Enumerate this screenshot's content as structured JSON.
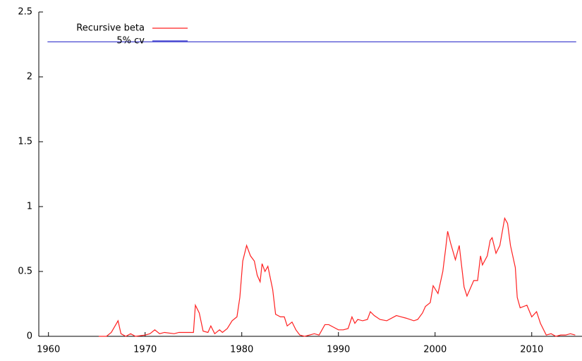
{
  "chart_data": {
    "type": "line",
    "xlim": [
      1959,
      2015.2
    ],
    "ylim": [
      0,
      2.5
    ],
    "xticks": [
      1960,
      1970,
      1980,
      1990,
      2000,
      2010
    ],
    "yticks": [
      0,
      0.5,
      1,
      1.5,
      2,
      2.5
    ],
    "legend": "top-left",
    "series": [
      {
        "name": "Recursive beta",
        "color": "#ff2020",
        "x": [
          1965.2,
          1966,
          1966.5,
          1967.2,
          1967.5,
          1968,
          1968.5,
          1969,
          1970,
          1970.5,
          1971,
          1971.5,
          1972,
          1973,
          1973.5,
          1974,
          1975,
          1975.2,
          1975.6,
          1976,
          1976.5,
          1976.8,
          1977.2,
          1977.7,
          1978,
          1978.5,
          1979,
          1979.5,
          1979.8,
          1980.1,
          1980.5,
          1980.9,
          1981.3,
          1981.6,
          1981.9,
          1982.1,
          1982.4,
          1982.7,
          1983.2,
          1983.5,
          1984,
          1984.4,
          1984.7,
          1985.2,
          1985.6,
          1986,
          1986.5,
          1987,
          1987.5,
          1988,
          1988.6,
          1989,
          1989.5,
          1990,
          1990.5,
          1991,
          1991.4,
          1991.7,
          1992,
          1992.5,
          1993,
          1993.3,
          1993.7,
          1994.3,
          1995,
          1996,
          1996.5,
          1997,
          1997.8,
          1998.2,
          1998.7,
          1999,
          1999.5,
          1999.8,
          2000.3,
          2000.8,
          2001.1,
          2001.3,
          2001.6,
          2002.1,
          2002.5,
          2003,
          2003.3,
          2004,
          2004.4,
          2004.7,
          2004.9,
          2005.4,
          2005.7,
          2005.9,
          2006.3,
          2006.7,
          2007.2,
          2007.5,
          2007.8,
          2008.3,
          2008.5,
          2008.8,
          2009.5,
          2010,
          2010.5,
          2010.9,
          2011.5,
          2012,
          2012.5,
          2013,
          2013.5,
          2014,
          2014.5
        ],
        "values": [
          0,
          0,
          0.03,
          0.12,
          0.02,
          0,
          0.02,
          0,
          0.01,
          0.02,
          0.05,
          0.02,
          0.03,
          0.02,
          0.03,
          0.03,
          0.03,
          0.24,
          0.18,
          0.04,
          0.03,
          0.08,
          0.02,
          0.05,
          0.03,
          0.06,
          0.12,
          0.15,
          0.3,
          0.58,
          0.7,
          0.62,
          0.58,
          0.47,
          0.42,
          0.56,
          0.5,
          0.54,
          0.36,
          0.17,
          0.15,
          0.15,
          0.08,
          0.11,
          0.05,
          0.01,
          0,
          0.01,
          0.02,
          0.01,
          0.09,
          0.09,
          0.07,
          0.05,
          0.05,
          0.06,
          0.15,
          0.1,
          0.13,
          0.12,
          0.13,
          0.19,
          0.16,
          0.13,
          0.12,
          0.16,
          0.15,
          0.14,
          0.12,
          0.13,
          0.18,
          0.23,
          0.26,
          0.39,
          0.33,
          0.5,
          0.68,
          0.81,
          0.72,
          0.59,
          0.7,
          0.38,
          0.31,
          0.43,
          0.43,
          0.62,
          0.55,
          0.62,
          0.74,
          0.76,
          0.64,
          0.7,
          0.91,
          0.87,
          0.7,
          0.53,
          0.3,
          0.22,
          0.24,
          0.15,
          0.19,
          0.1,
          0.01,
          0.02,
          0,
          0.01,
          0.01,
          0.02,
          0.01
        ]
      },
      {
        "name": "5% cv",
        "color": "#3333cc",
        "x": [
          1959.9,
          2014.6
        ],
        "values": [
          2.27,
          2.27
        ]
      }
    ]
  }
}
